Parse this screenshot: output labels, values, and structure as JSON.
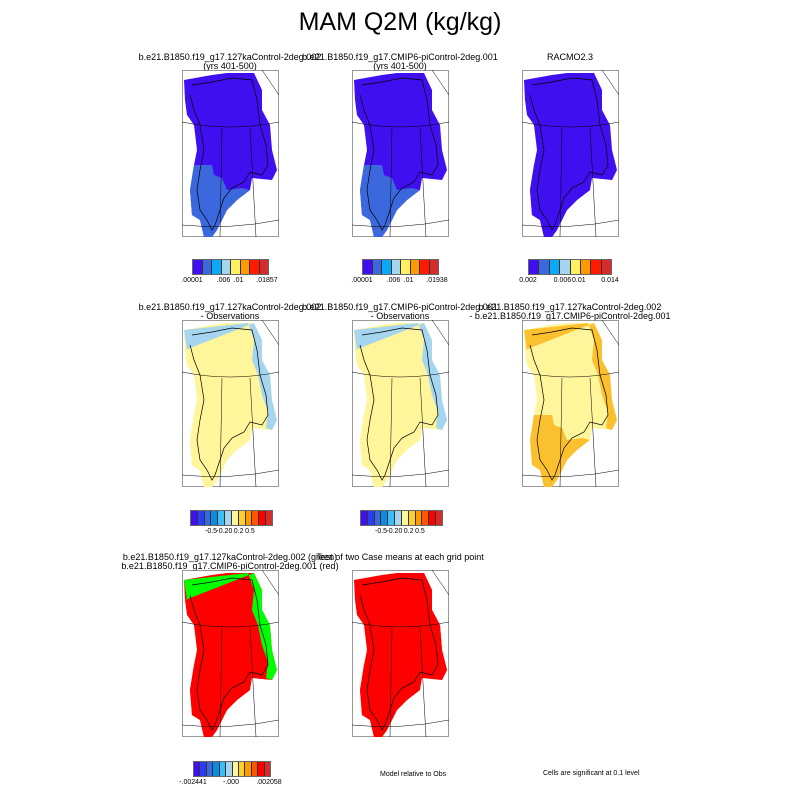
{
  "title": "MAM Q2M (kg/kg)",
  "panels": [
    {
      "title1": "b.e21.B1850.f19_g17.127kaControl-2deg.002",
      "title2": "(yrs 401-500)",
      "main": "#3f0ff0",
      "second": "#3c68dd",
      "third": "#0aa9f5"
    },
    {
      "title1": "b.e21.B1850.f19_g17.CMIP6-piControl-2deg.001",
      "title2": "(yrs 401-500)",
      "main": "#3f0ff0",
      "second": "#3c68dd",
      "third": "#0aa9f5"
    },
    {
      "title1": "RACMO2.3",
      "title2": "",
      "main": "#3f0ff0",
      "second": "#3f0ff0",
      "third": "#0aa9f5"
    },
    {
      "title1": "b.e21.B1850.f19_g17.127kaControl-2deg.002",
      "title2": "- Observations",
      "main": "#fff59a",
      "second": "#fff59a",
      "third": "#a5d5ef"
    },
    {
      "title1": "b.e21.B1850.f19_g17.CMIP6-piControl-2deg.001",
      "title2": "- Observations",
      "main": "#fff59a",
      "second": "#fff59a",
      "third": "#a5d5ef"
    },
    {
      "title1": "b.e21.B1850.f19_g17.127kaControl-2deg.002",
      "title2": "- b.e21.B1850.f19_g17.CMIP6-piControl-2deg.001",
      "main": "#fff59a",
      "second": "#fbc02d",
      "third": "#fbc02d"
    },
    {
      "title1": "b.e21.B1850.f19_g17.127kaControl-2deg.002 (green)",
      "title2": "b.e21.B1850.f19_g17.CMIP6-piControl-2deg.001 (red)",
      "main": "#ff0000",
      "second": "#ff0000",
      "third": "#00ff00"
    },
    {
      "title1": "Test of two Case means at each grid point",
      "title2": "",
      "main": "#ff0000",
      "second": "#ff0000",
      "third": "#ff0000"
    }
  ],
  "colorbars": [
    {
      "colors": [
        "#3f0ff0",
        "#3c68dd",
        "#0aa9f5",
        "#a5d5ef",
        "#fff066",
        "#ff9900",
        "#ff1a00",
        "#d42b2b"
      ],
      "labels": [
        ".00001",
        ".006",
        ".01",
        ".01857"
      ]
    },
    {
      "colors": [
        "#3f0ff0",
        "#3c68dd",
        "#0aa9f5",
        "#a5d5ef",
        "#fff066",
        "#ff9900",
        "#ff1a00",
        "#d42b2b"
      ],
      "labels": [
        ".00001",
        ".006",
        ".01",
        ".01938"
      ]
    },
    {
      "colors": [
        "#3f0ff0",
        "#3c68dd",
        "#0aa9f5",
        "#a5d5ef",
        "#fff066",
        "#ff9900",
        "#ff1a00",
        "#d42b2b"
      ],
      "labels": [
        "0.002",
        "0.006",
        "0.01",
        "0.014"
      ]
    },
    {
      "colors": [
        "#3f0ff0",
        "#2a3df0",
        "#3c68dd",
        "#0a8ce0",
        "#3cbdf5",
        "#a5d5ef",
        "#fff59a",
        "#fbd02d",
        "#ff9900",
        "#ff5500",
        "#ff0000",
        "#d42b2b"
      ],
      "labels": [
        "-0.5",
        "-0.2",
        "0",
        "0.2",
        "0.5"
      ]
    },
    {
      "colors": [
        "#3f0ff0",
        "#2a3df0",
        "#3c68dd",
        "#0a8ce0",
        "#3cbdf5",
        "#a5d5ef",
        "#fff59a",
        "#fbd02d",
        "#ff9900",
        "#ff5500",
        "#ff0000",
        "#d42b2b"
      ],
      "labels": [
        "-0.5",
        "-0.2",
        "0",
        "0.2",
        "0.5"
      ]
    },
    {
      "colors": [
        "#3f0ff0",
        "#2a3df0",
        "#3c68dd",
        "#0a8ce0",
        "#3cbdf5",
        "#a5d5ef",
        "#fff59a",
        "#fbd02d",
        "#ff9900",
        "#ff5500",
        "#ff0000",
        "#d42b2b"
      ],
      "labels": [
        "-.002441",
        "-.000",
        ".002058"
      ]
    }
  ],
  "notes": {
    "model_relative": "Model relative to Obs",
    "significance": "Cells are significant at 0.1 level"
  }
}
